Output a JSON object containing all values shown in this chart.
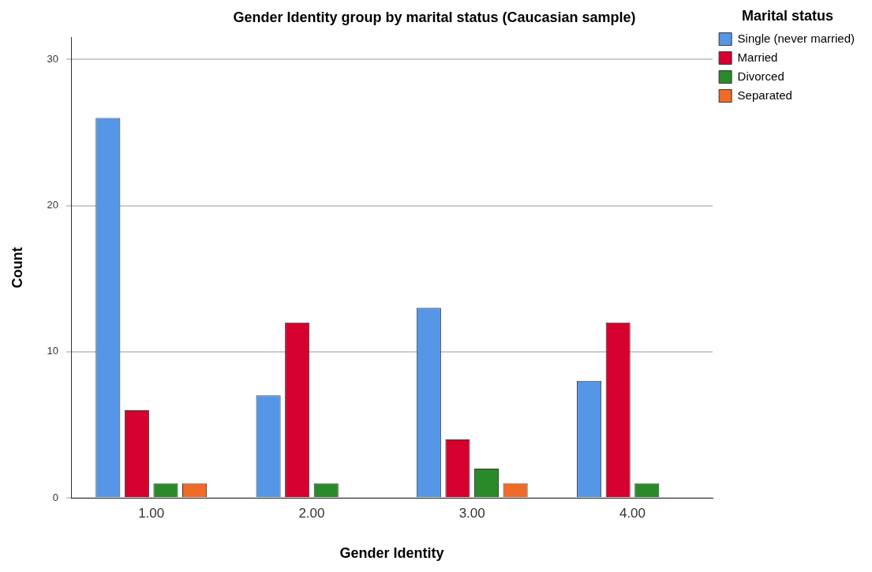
{
  "chart_data": {
    "type": "bar",
    "title": "Gender Identity group by marital status (Caucasian sample)",
    "xlabel": "Gender Identity",
    "ylabel": "Count",
    "legend_title": "Marital status",
    "categories": [
      "1.00",
      "2.00",
      "3.00",
      "4.00"
    ],
    "series": [
      {
        "name": "Single (never married)",
        "color": "#5596e6",
        "values": [
          26,
          7,
          13,
          8
        ]
      },
      {
        "name": "Married",
        "color": "#d6002f",
        "values": [
          6,
          12,
          4,
          12
        ]
      },
      {
        "name": "Divorced",
        "color": "#2a8a2a",
        "values": [
          1,
          1,
          2,
          1
        ]
      },
      {
        "name": "Separated",
        "color": "#f06a28",
        "values": [
          1,
          null,
          1,
          null
        ]
      }
    ],
    "ylim": [
      0,
      31.5
    ],
    "yticks": [
      0,
      10,
      20,
      30
    ],
    "grid": "y",
    "legend": "top right"
  }
}
